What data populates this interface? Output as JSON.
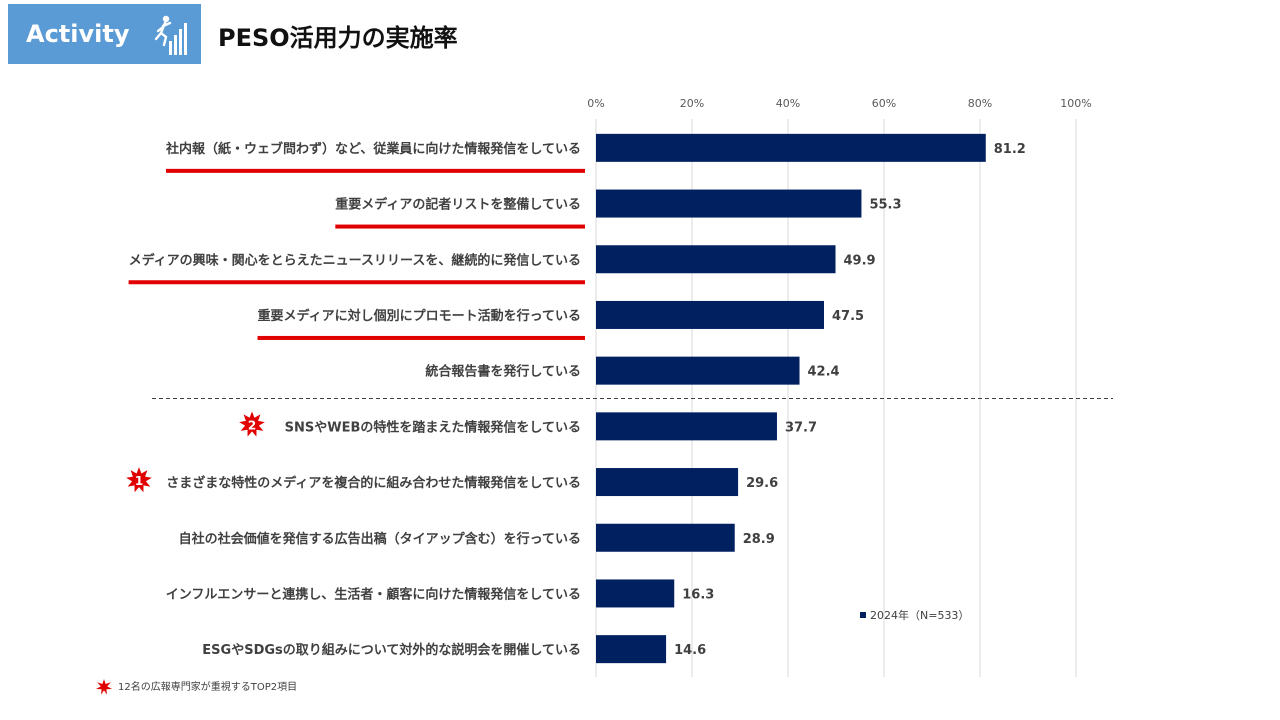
{
  "header": {
    "badge_label": "Activity",
    "badge_icon": "stairs-climber-icon",
    "title": "PESO活用力の実施率"
  },
  "colors": {
    "badge": "#5b9bd5",
    "bar": "#002060",
    "highlight": "#e00000",
    "grid": "#d9d9d9"
  },
  "chart_data": {
    "type": "bar",
    "orientation": "horizontal",
    "categories": [
      "社内報（紙・ウェブ問わず）など、従業員に向けた情報発信をしている",
      "重要メディアの記者リストを整備している",
      "メディアの興味・関心をとらえたニュースリリースを、継続的に発信している",
      "重要メディアに対し個別にプロモート活動を行っている",
      "統合報告書を発行している",
      "SNSやWEBの特性を踏まえた情報発信をしている",
      "さまざまな特性のメディアを複合的に組み合わせた情報発信をしている",
      "自社の社会価値を発信する広告出稿（タイアップ含む）を行っている",
      "インフルエンサーと連携し、生活者・顧客に向けた情報発信をしている",
      "ESGやSDGsの取り組みについて対外的な説明会を開催している"
    ],
    "series": [
      {
        "name": "2024年（N=533）",
        "values": [
          81.2,
          55.3,
          49.9,
          47.5,
          42.4,
          37.7,
          29.6,
          28.9,
          16.3,
          14.6
        ]
      }
    ],
    "data_labels": [
      "81.2",
      "55.3",
      "49.9",
      "47.5",
      "42.4",
      "37.7",
      "29.6",
      "28.9",
      "16.3",
      "14.6"
    ],
    "x_ticks": [
      "0%",
      "20%",
      "40%",
      "60%",
      "80%",
      "100%"
    ],
    "x_tick_values": [
      0,
      20,
      40,
      60,
      80,
      100
    ],
    "xlim": [
      0,
      100
    ],
    "grid": true,
    "legend": "bottom-right",
    "underlined_categories": [
      0,
      1,
      2,
      3
    ],
    "divider_after_index": 4,
    "ranked_markers": [
      {
        "category_index": 5,
        "rank": "2"
      },
      {
        "category_index": 6,
        "rank": "1"
      }
    ]
  },
  "footnote": {
    "icon": "red-star-icon",
    "text": "12名の広報専門家が重視するTOP2項目"
  }
}
